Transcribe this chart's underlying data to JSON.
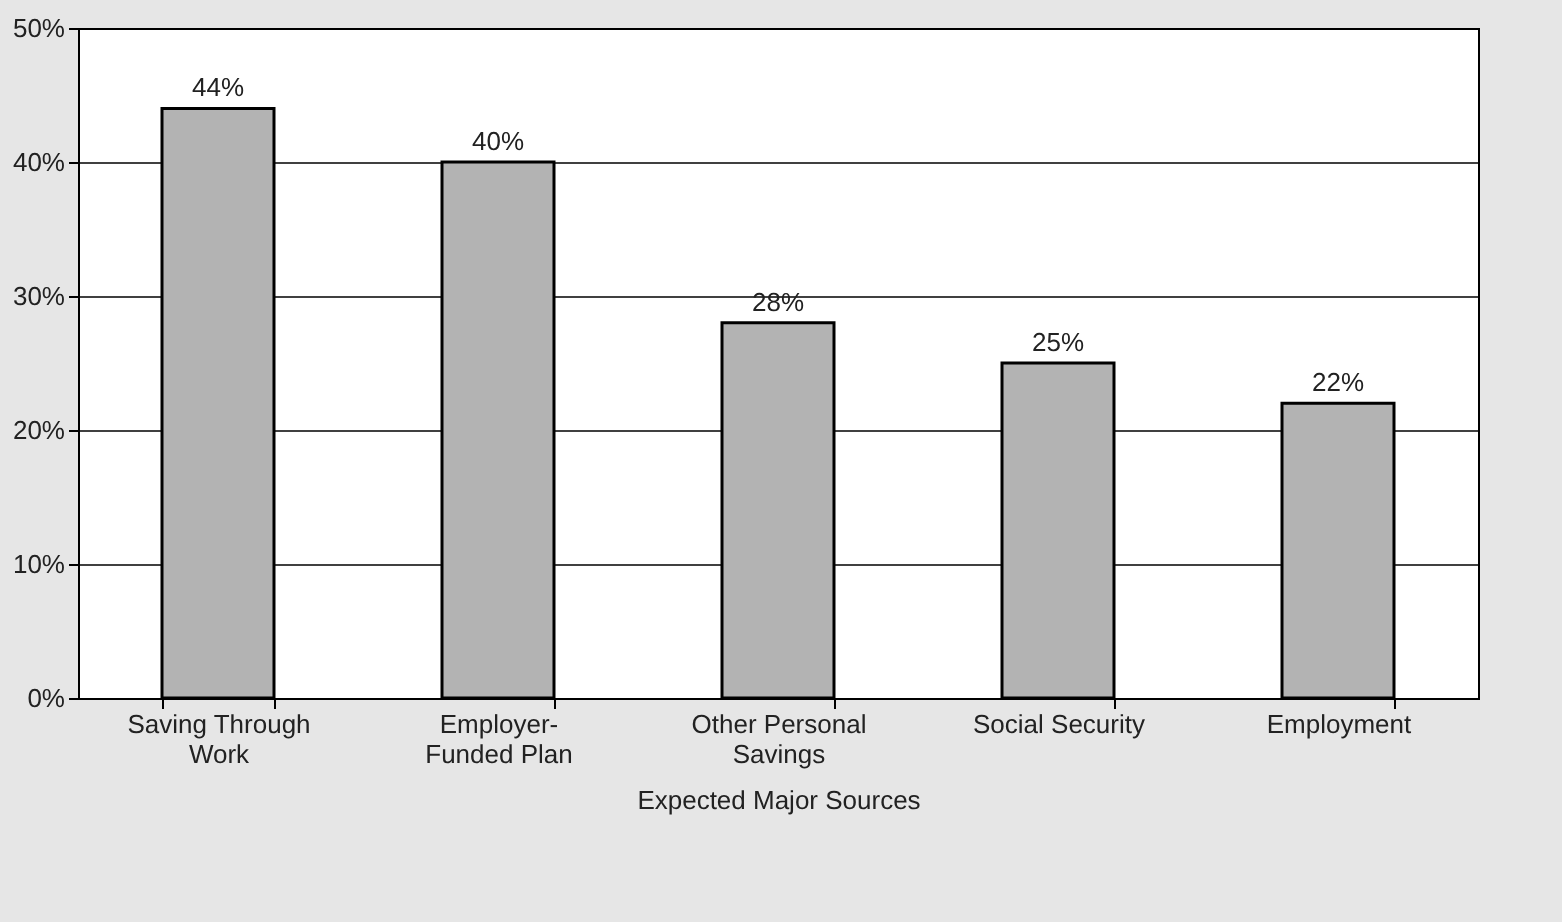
{
  "chart_data": {
    "type": "bar",
    "xlabel": "Expected Major Sources",
    "categories": [
      "Saving Through Work",
      "Employer-Funded Plan",
      "Other Personal Savings",
      "Social Security",
      "Employment"
    ],
    "values": [
      44,
      40,
      28,
      25,
      22
    ],
    "value_labels": [
      "44%",
      "40%",
      "28%",
      "25%",
      "22%"
    ],
    "color": "#b3b3b3",
    "ylim": [
      0,
      50
    ],
    "yticks": [
      {
        "value": 0,
        "label": "0%"
      },
      {
        "value": 10,
        "label": "10%"
      },
      {
        "value": 20,
        "label": "20%"
      },
      {
        "value": 30,
        "label": "30%"
      },
      {
        "value": 40,
        "label": "40%"
      },
      {
        "value": 50,
        "label": "50%"
      }
    ],
    "grid": "y"
  }
}
